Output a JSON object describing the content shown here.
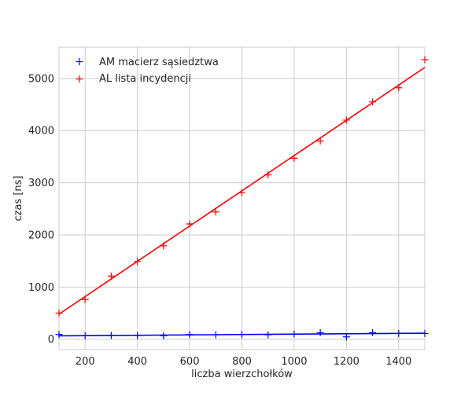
{
  "chart_data": {
    "type": "scatter",
    "xlabel": "liczba wierzchołków",
    "ylabel": "czas [ns]",
    "xlim": [
      100,
      1500
    ],
    "ylim": [
      -200,
      5600
    ],
    "xticks": [
      200,
      400,
      600,
      800,
      1000,
      1200,
      1400
    ],
    "yticks": [
      0,
      1000,
      2000,
      3000,
      4000,
      5000
    ],
    "grid": true,
    "legend_position": "top-left",
    "series": [
      {
        "name": "AM macierz sąsiedztwa",
        "color": "#0000ff",
        "marker": "plus",
        "x": [
          100,
          200,
          300,
          400,
          500,
          600,
          700,
          800,
          900,
          1000,
          1100,
          1200,
          1300,
          1400,
          1500
        ],
        "y": [
          90,
          65,
          75,
          70,
          65,
          90,
          85,
          90,
          85,
          100,
          125,
          45,
          125,
          110,
          110
        ],
        "fit": {
          "x": [
            100,
            1500
          ],
          "y": [
            65,
            115
          ]
        }
      },
      {
        "name": "AL lista incydencji",
        "color": "#ff0000",
        "marker": "plus",
        "x": [
          100,
          200,
          300,
          400,
          500,
          600,
          700,
          800,
          900,
          1000,
          1100,
          1200,
          1300,
          1400,
          1500
        ],
        "y": [
          500,
          760,
          1210,
          1490,
          1790,
          2210,
          2440,
          2810,
          3150,
          3470,
          3800,
          4200,
          4550,
          4820,
          5360
        ],
        "fit": {
          "x": [
            100,
            1500
          ],
          "y": [
            480,
            5210
          ]
        }
      }
    ]
  }
}
